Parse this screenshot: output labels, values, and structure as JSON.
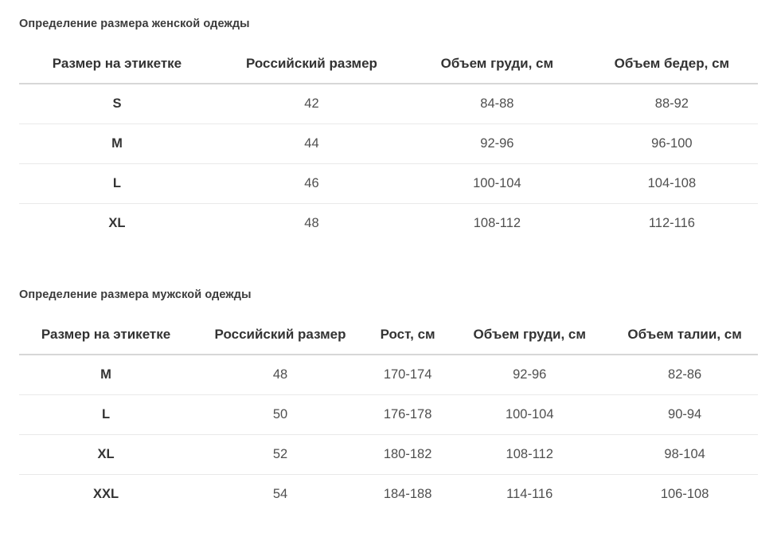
{
  "colors": {
    "background": "#ffffff",
    "title_text": "#3c3c3c",
    "header_text": "#333333",
    "cell_text": "#4f4f4f",
    "header_border": "#d7d7d7",
    "row_border": "#e9e9e9"
  },
  "tables": [
    {
      "title": "Определение размера женской одежды",
      "columns": [
        "Размер на этикетке",
        "Российский размер",
        "Объем груди, см",
        "Объем бедер, см"
      ],
      "rows": [
        [
          "S",
          "42",
          "84-88",
          "88-92"
        ],
        [
          "M",
          "44",
          "92-96",
          "96-100"
        ],
        [
          "L",
          "46",
          "100-104",
          "104-108"
        ],
        [
          "XL",
          "48",
          "108-112",
          "112-116"
        ]
      ]
    },
    {
      "title": "Определение размера мужской одежды",
      "columns": [
        "Размер на этикетке",
        "Российский размер",
        "Рост, см",
        "Объем груди, см",
        "Объем талии, см"
      ],
      "rows": [
        [
          "M",
          "48",
          "170-174",
          "92-96",
          "82-86"
        ],
        [
          "L",
          "50",
          "176-178",
          "100-104",
          "90-94"
        ],
        [
          "XL",
          "52",
          "180-182",
          "108-112",
          "98-104"
        ],
        [
          "XXL",
          "54",
          "184-188",
          "114-116",
          "106-108"
        ]
      ]
    }
  ]
}
